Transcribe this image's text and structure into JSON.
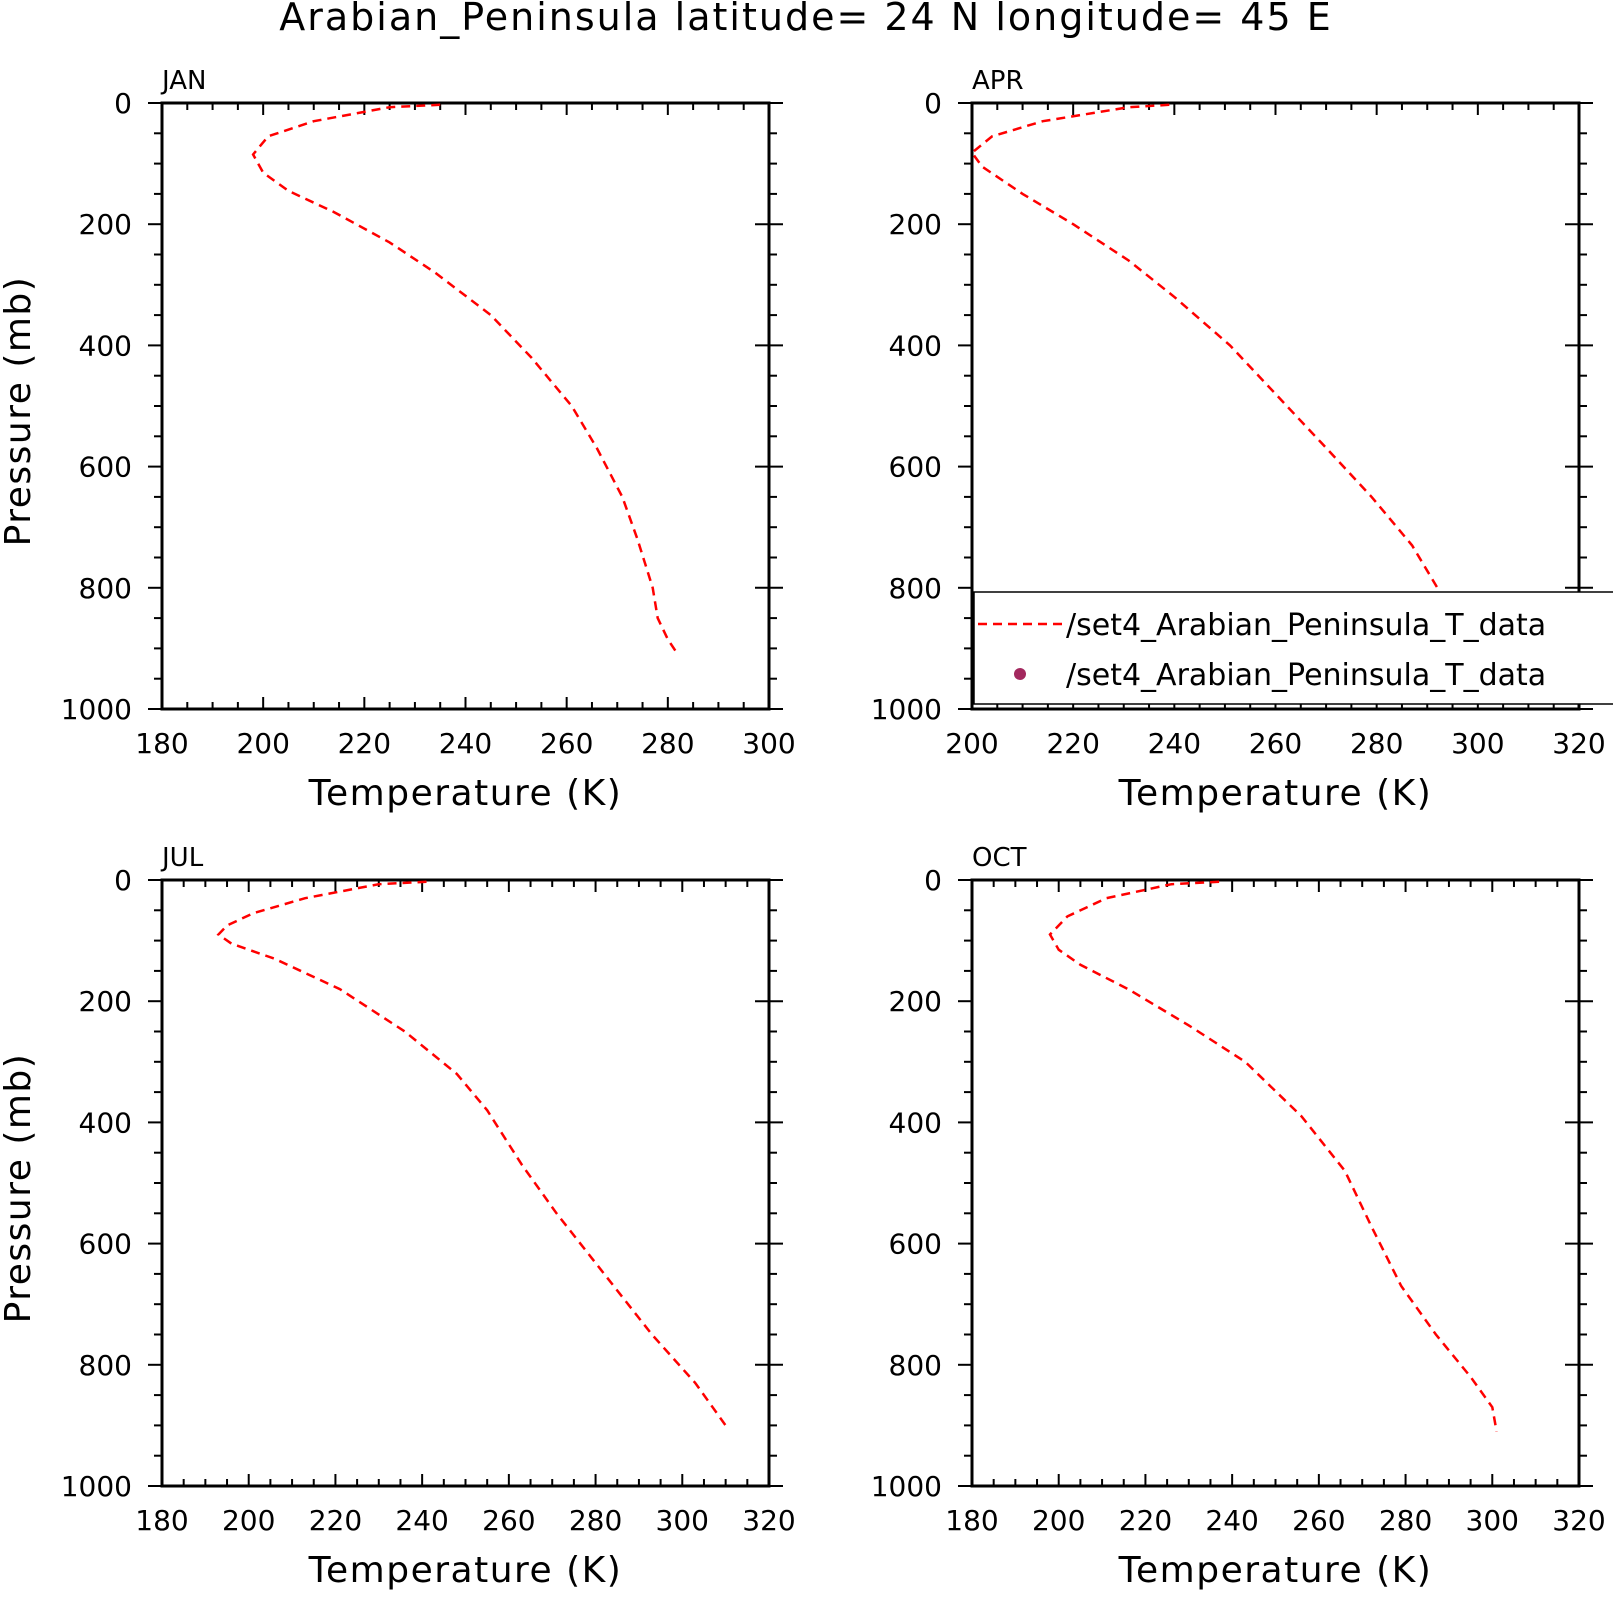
{
  "figure": {
    "title": "Arabian_Peninsula  latitude= 24 N longitude= 45 E"
  },
  "legend": {
    "entries": [
      {
        "label": "/set4_Arabian_Peninsula_T_data",
        "marker": "dashed-line",
        "color": "#ff0000"
      },
      {
        "label": "/set4_Arabian_Peninsula_T_data",
        "marker": "dot",
        "color": "#a3285e"
      }
    ]
  },
  "chart_data": [
    {
      "type": "line",
      "panel_label": "JAN",
      "xlabel": "Temperature (K)",
      "ylabel": "Pressure (mb)",
      "xlim": [
        180,
        300
      ],
      "ylim": [
        1000,
        0
      ],
      "x_ticks": [
        180,
        200,
        220,
        240,
        260,
        280,
        300
      ],
      "y_ticks": [
        0,
        200,
        400,
        600,
        800,
        1000
      ],
      "series": [
        {
          "color": "#ff0000",
          "line_style": "dashed",
          "points": [
            [
              235,
              3
            ],
            [
              225,
              7
            ],
            [
              210,
              30
            ],
            [
              201,
              55
            ],
            [
              198,
              85
            ],
            [
              200,
              115
            ],
            [
              205,
              145
            ],
            [
              214,
              180
            ],
            [
              225,
              230
            ],
            [
              234,
              280
            ],
            [
              245,
              350
            ],
            [
              253,
              420
            ],
            [
              261,
              500
            ],
            [
              266,
              570
            ],
            [
              271,
              650
            ],
            [
              274,
              720
            ],
            [
              277,
              800
            ],
            [
              278,
              850
            ],
            [
              280,
              885
            ],
            [
              282,
              910
            ]
          ]
        }
      ]
    },
    {
      "type": "line",
      "panel_label": "APR",
      "xlabel": "Temperature (K)",
      "ylabel": "",
      "xlim": [
        200,
        320
      ],
      "ylim": [
        1000,
        0
      ],
      "x_ticks": [
        200,
        220,
        240,
        260,
        280,
        300,
        320
      ],
      "y_ticks": [
        0,
        200,
        400,
        600,
        800,
        1000
      ],
      "series": [
        {
          "color": "#ff0000",
          "line_style": "dashed",
          "points": [
            [
              239,
              3
            ],
            [
              231,
              7
            ],
            [
              214,
              30
            ],
            [
              204,
              55
            ],
            [
              200,
              82
            ],
            [
              202,
              105
            ],
            [
              210,
              150
            ],
            [
              220,
              200
            ],
            [
              231,
              260
            ],
            [
              240,
              320
            ],
            [
              251,
              400
            ],
            [
              260,
              480
            ],
            [
              269,
              560
            ],
            [
              279,
              650
            ],
            [
              287,
              730
            ],
            [
              292,
              800
            ],
            [
              295,
              850
            ],
            [
              298,
              895
            ]
          ]
        }
      ]
    },
    {
      "type": "line",
      "panel_label": "JUL",
      "xlabel": "Temperature (K)",
      "ylabel": "Pressure (mb)",
      "xlim": [
        180,
        320
      ],
      "ylim": [
        1000,
        0
      ],
      "x_ticks": [
        180,
        200,
        220,
        240,
        260,
        280,
        300,
        320
      ],
      "y_ticks": [
        0,
        200,
        400,
        600,
        800,
        1000
      ],
      "series": [
        {
          "color": "#ff0000",
          "line_style": "dashed",
          "points": [
            [
              241,
              3
            ],
            [
              230,
              7
            ],
            [
              213,
              30
            ],
            [
              201,
              55
            ],
            [
              195,
              75
            ],
            [
              193,
              90
            ],
            [
              196,
              105
            ],
            [
              206,
              130
            ],
            [
              221,
              180
            ],
            [
              236,
              250
            ],
            [
              248,
              320
            ],
            [
              255,
              380
            ],
            [
              263,
              470
            ],
            [
              271,
              550
            ],
            [
              282,
              650
            ],
            [
              293,
              750
            ],
            [
              303,
              830
            ],
            [
              307,
              870
            ],
            [
              310,
              900
            ]
          ]
        }
      ]
    },
    {
      "type": "line",
      "panel_label": "OCT",
      "xlabel": "Temperature (K)",
      "ylabel": "",
      "xlim": [
        180,
        320
      ],
      "ylim": [
        1000,
        0
      ],
      "x_ticks": [
        180,
        200,
        220,
        240,
        260,
        280,
        300,
        320
      ],
      "y_ticks": [
        0,
        200,
        400,
        600,
        800,
        1000
      ],
      "series": [
        {
          "color": "#ff0000",
          "line_style": "dashed",
          "points": [
            [
              237,
              3
            ],
            [
              226,
              7
            ],
            [
              211,
              30
            ],
            [
              202,
              60
            ],
            [
              198,
              90
            ],
            [
              200,
              115
            ],
            [
              205,
              140
            ],
            [
              216,
              180
            ],
            [
              230,
              240
            ],
            [
              243,
              300
            ],
            [
              256,
              390
            ],
            [
              266,
              480
            ],
            [
              272,
              570
            ],
            [
              279,
              670
            ],
            [
              287,
              750
            ],
            [
              295,
              820
            ],
            [
              300,
              870
            ],
            [
              301,
              910
            ]
          ]
        }
      ]
    }
  ]
}
